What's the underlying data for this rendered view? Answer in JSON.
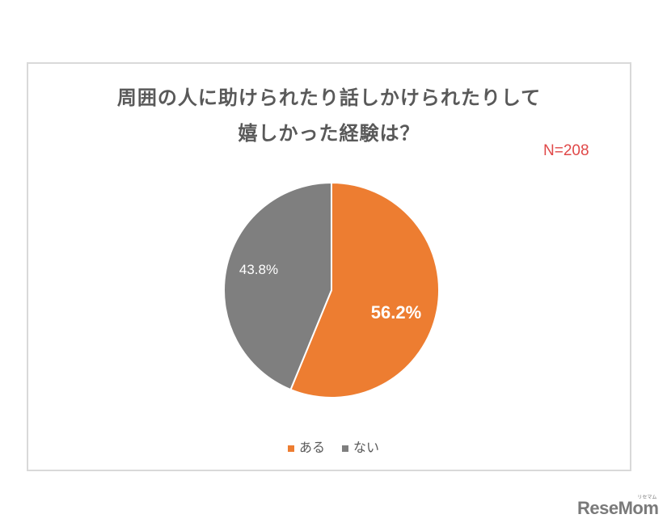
{
  "chart_data": {
    "type": "pie",
    "title": "周囲の人に助けられたり話しかけられたりして嬉しかった経験は？",
    "title_lines": [
      "周囲の人に助けられたり話しかけられたりして",
      "嬉しかった経験は？"
    ],
    "annotation": "N=208",
    "categories": [
      "ある",
      "ない"
    ],
    "values": [
      56.2,
      43.8
    ],
    "labels": [
      "56.2%",
      "43.8%"
    ],
    "colors": [
      "#ed7d31",
      "#7f7f7f"
    ],
    "legend_position": "bottom",
    "start_angle": "top, clockwise"
  },
  "logo": {
    "text": "ReseMom",
    "sub": "リセマム"
  }
}
